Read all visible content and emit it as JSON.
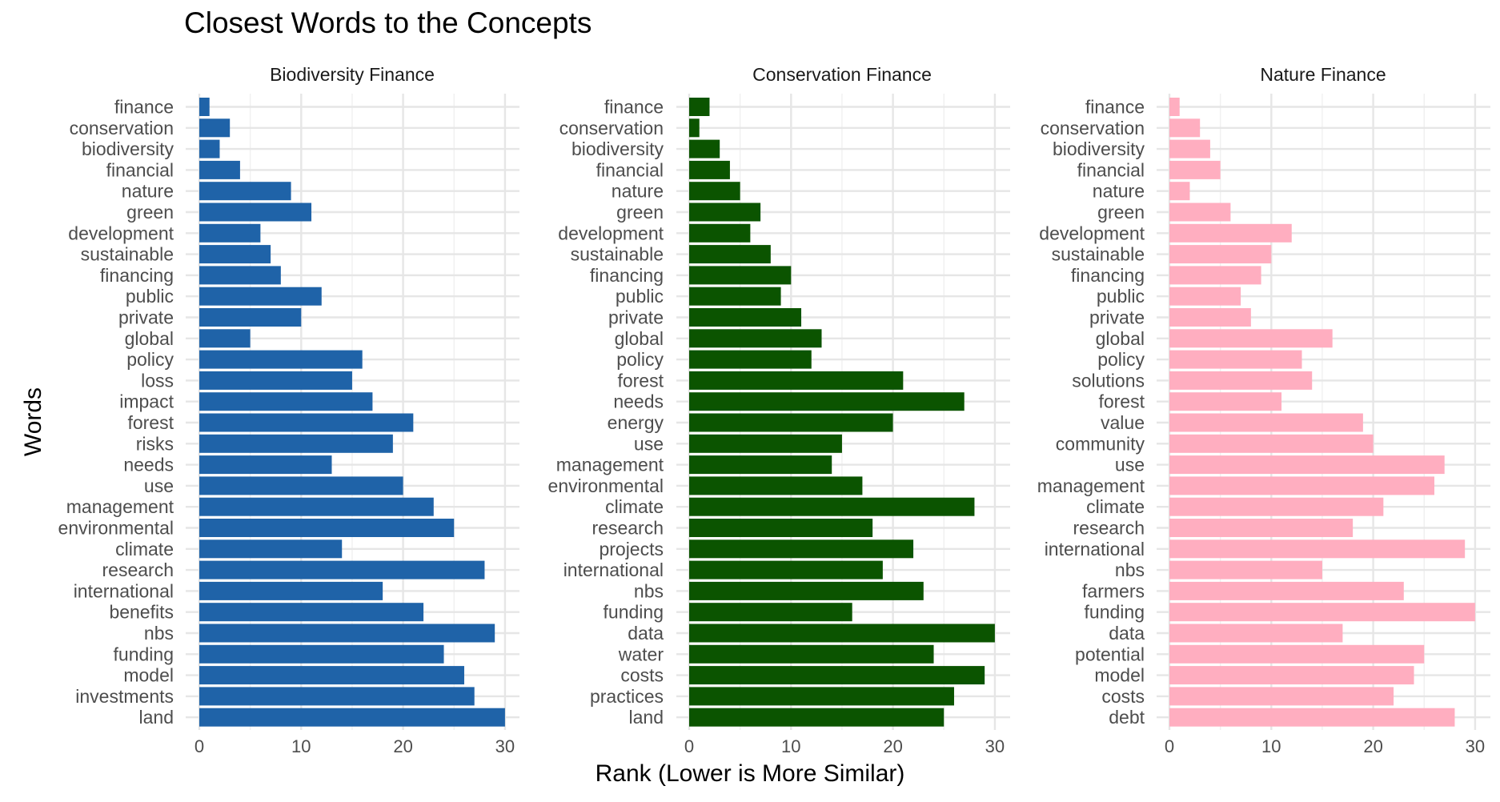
{
  "chart_data": {
    "type": "bar",
    "orientation": "horizontal",
    "title": "Closest Words to the Concepts",
    "xlabel": "Rank (Lower is More Similar)",
    "ylabel": "Words",
    "xlim": [
      0,
      30
    ],
    "x_ticks": [
      "0",
      "10",
      "20",
      "30"
    ],
    "grid": true,
    "panels": [
      {
        "name": "Biodiversity Finance",
        "color": "#1f63a8",
        "words": [
          "finance",
          "conservation",
          "biodiversity",
          "financial",
          "nature",
          "green",
          "development",
          "sustainable",
          "financing",
          "public",
          "private",
          "global",
          "policy",
          "loss",
          "impact",
          "forest",
          "risks",
          "needs",
          "use",
          "management",
          "environmental",
          "climate",
          "research",
          "international",
          "benefits",
          "nbs",
          "funding",
          "model",
          "investments",
          "land"
        ],
        "values": [
          1,
          3,
          2,
          4,
          9,
          11,
          6,
          7,
          8,
          12,
          10,
          5,
          16,
          15,
          17,
          21,
          19,
          13,
          20,
          23,
          25,
          14,
          28,
          18,
          22,
          29,
          24,
          26,
          27,
          30
        ]
      },
      {
        "name": "Conservation Finance",
        "color": "#0b5400",
        "words": [
          "finance",
          "conservation",
          "biodiversity",
          "financial",
          "nature",
          "green",
          "development",
          "sustainable",
          "financing",
          "public",
          "private",
          "global",
          "policy",
          "forest",
          "needs",
          "energy",
          "use",
          "management",
          "environmental",
          "climate",
          "research",
          "projects",
          "international",
          "nbs",
          "funding",
          "data",
          "water",
          "costs",
          "practices",
          "land"
        ],
        "values": [
          2,
          1,
          3,
          4,
          5,
          7,
          6,
          8,
          10,
          9,
          11,
          13,
          12,
          21,
          27,
          20,
          15,
          14,
          17,
          28,
          18,
          22,
          19,
          23,
          16,
          30,
          24,
          29,
          26,
          25
        ]
      },
      {
        "name": "Nature Finance",
        "color": "#ffaec0",
        "words": [
          "finance",
          "conservation",
          "biodiversity",
          "financial",
          "nature",
          "green",
          "development",
          "sustainable",
          "financing",
          "public",
          "private",
          "global",
          "policy",
          "solutions",
          "forest",
          "value",
          "community",
          "use",
          "management",
          "climate",
          "research",
          "international",
          "nbs",
          "farmers",
          "funding",
          "data",
          "potential",
          "model",
          "costs",
          "debt"
        ],
        "values": [
          1,
          3,
          4,
          5,
          2,
          6,
          12,
          10,
          9,
          7,
          8,
          16,
          13,
          14,
          11,
          19,
          20,
          27,
          26,
          21,
          18,
          29,
          15,
          23,
          30,
          17,
          25,
          24,
          22,
          28
        ]
      }
    ]
  }
}
